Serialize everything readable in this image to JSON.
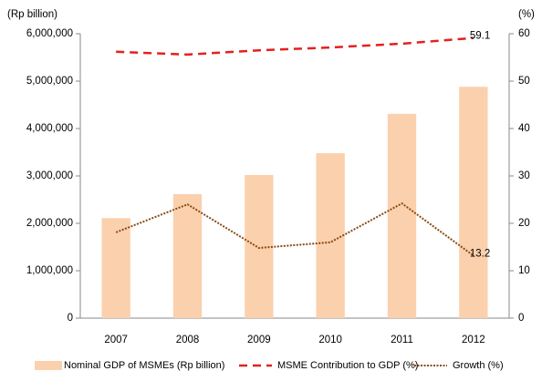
{
  "chart_data": {
    "type": "bar",
    "y_label": "(Rp billion)",
    "y2_label": "(%)",
    "categories": [
      "2007",
      "2008",
      "2009",
      "2010",
      "2011",
      "2012"
    ],
    "series": [
      {
        "name": "Nominal GDP of MSMEs (Rp billion)",
        "type": "bar",
        "color": "#fbd0ad",
        "values": [
          2110000,
          2615000,
          3020000,
          3480000,
          4310000,
          4880000
        ]
      },
      {
        "name": "MSME Contribution to GDP (%)",
        "type": "line",
        "axis": "y2",
        "dash": "dashed",
        "color": "#e3211f",
        "values": [
          56.2,
          55.6,
          56.5,
          57.1,
          57.9,
          59.1
        ],
        "labeled_index": 5
      },
      {
        "name": "Growth (%)",
        "type": "line",
        "axis": "y2",
        "dash": "dotted",
        "color": "#8a4a12",
        "values": [
          18.1,
          24.0,
          14.8,
          16.0,
          24.2,
          13.2
        ],
        "labeled_index": 5
      }
    ],
    "ylim": [
      0,
      6000000
    ],
    "yticks": [
      0,
      {
        "value": 1000000,
        "label": "1,000,000"
      },
      {
        "value": 2000000,
        "label": "2,000,000"
      },
      {
        "value": 3000000,
        "label": "3,000,000"
      },
      {
        "value": 4000000,
        "label": "4,000,000"
      },
      {
        "value": 5000000,
        "label": "5,000,000"
      },
      {
        "value": 6000000,
        "label": "6,000,000"
      }
    ],
    "y2lim": [
      0,
      60
    ],
    "y2ticks": [
      0,
      10,
      20,
      30,
      40,
      50,
      60
    ],
    "legend": "bottom"
  }
}
